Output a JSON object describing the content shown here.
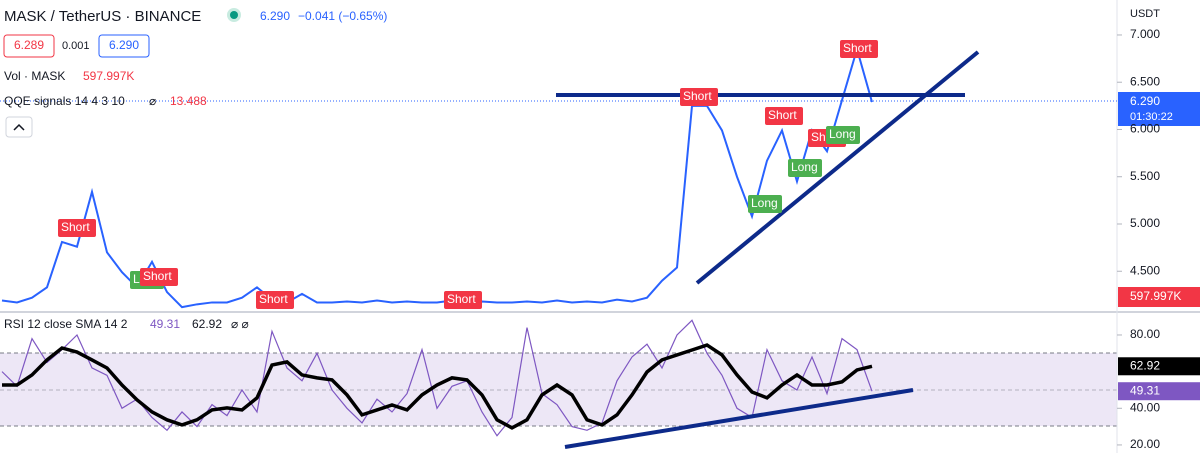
{
  "header": {
    "symbol": "MASK / TetherUS · BINANCE",
    "last": "6.290",
    "change": "−0.041 (−0.65%)",
    "bid": "6.289",
    "spread": "0.001",
    "ask": "6.290",
    "currency": "USDT",
    "countdown": "01:30:22"
  },
  "indicators": {
    "vol": {
      "label": "Vol · MASK",
      "value": "597.997K"
    },
    "qqe": {
      "label": "QQE signals 14 4 3 10",
      "value": "13.488"
    },
    "rsi": {
      "label": "RSI 12 close SMA 14 2"
    }
  },
  "signals": [
    "Short",
    "Long",
    "Short",
    "Short",
    "Short",
    "Short",
    "Long",
    "Short",
    "Long",
    "Short",
    "Long",
    "Short"
  ],
  "chart_data": [
    {
      "type": "line",
      "ylim": [
        4.09,
        7.37
      ],
      "yticks": [
        {
          "value": 4.5,
          "label": "4.500"
        },
        {
          "value": 5,
          "label": "5.000"
        },
        {
          "value": 5.5,
          "label": "5.500"
        },
        {
          "value": 6,
          "label": "6.000"
        },
        {
          "value": 6.5,
          "label": "6.500"
        },
        {
          "value": 7,
          "label": "7.000"
        }
      ],
      "series": [
        {
          "color": "#2962ff",
          "values": [
            4.19,
            4.17,
            4.22,
            4.33,
            4.81,
            4.76,
            5.34,
            4.7,
            4.49,
            4.33,
            4.6,
            4.28,
            4.12,
            4.15,
            4.17,
            4.17,
            4.22,
            4.33,
            4.2,
            4.17,
            4.26,
            4.17,
            4.17,
            4.18,
            4.17,
            4.19,
            4.17,
            4.18,
            4.17,
            4.17,
            4.19,
            4.17,
            4.18,
            4.17,
            4.17,
            4.18,
            4.17,
            4.19,
            4.17,
            4.18,
            4.17,
            4.2,
            4.18,
            4.22,
            4.4,
            4.54,
            6.25,
            6.25,
            5.99,
            5.5,
            5.08,
            5.67,
            5.99,
            5.45,
            5.99,
            5.77,
            6.31,
            6.85,
            6.29
          ]
        }
      ]
    },
    {
      "type": "line",
      "ylim": [
        15.6,
        90.9
      ],
      "yticks": [
        {
          "value": 20,
          "label": "20.00"
        },
        {
          "value": 40,
          "label": "40.00"
        },
        {
          "value": 80,
          "label": "80.00"
        }
      ],
      "series": [
        {
          "color": "#7e57c2",
          "values": [
            60,
            52,
            78,
            65,
            72,
            80,
            62,
            58,
            40,
            45,
            35,
            28,
            38,
            30,
            42,
            36,
            50,
            38,
            82,
            62,
            55,
            70,
            50,
            40,
            32,
            45,
            38,
            48,
            72,
            40,
            52,
            55,
            38,
            25,
            35,
            84,
            48,
            42,
            30,
            28,
            32,
            55,
            68,
            75,
            62,
            80,
            88,
            70,
            58,
            40,
            35,
            72,
            55,
            50,
            68,
            48,
            78,
            72,
            49.31
          ]
        },
        {
          "color": "#000000",
          "values": [
            52.7,
            52.7,
            58.2,
            66.4,
            72.9,
            70.7,
            66.4,
            62,
            52.7,
            44.6,
            38,
            33.7,
            30.9,
            33.7,
            39.1,
            40.2,
            39.1,
            45.7,
            63.6,
            65.3,
            58.2,
            56.6,
            55.5,
            47.3,
            36.4,
            39.1,
            41.8,
            39.1,
            47.3,
            52.7,
            56.6,
            55.5,
            47.3,
            33.7,
            29.3,
            33.7,
            47.3,
            52.7,
            47.3,
            33.7,
            30.9,
            36.4,
            47.3,
            59.8,
            66.4,
            69.1,
            71.8,
            74.5,
            69.1,
            58.2,
            48.9,
            45.7,
            52.7,
            58.2,
            52.7,
            52.7,
            54.4,
            60.9,
            62.92
          ]
        }
      ]
    }
  ]
}
